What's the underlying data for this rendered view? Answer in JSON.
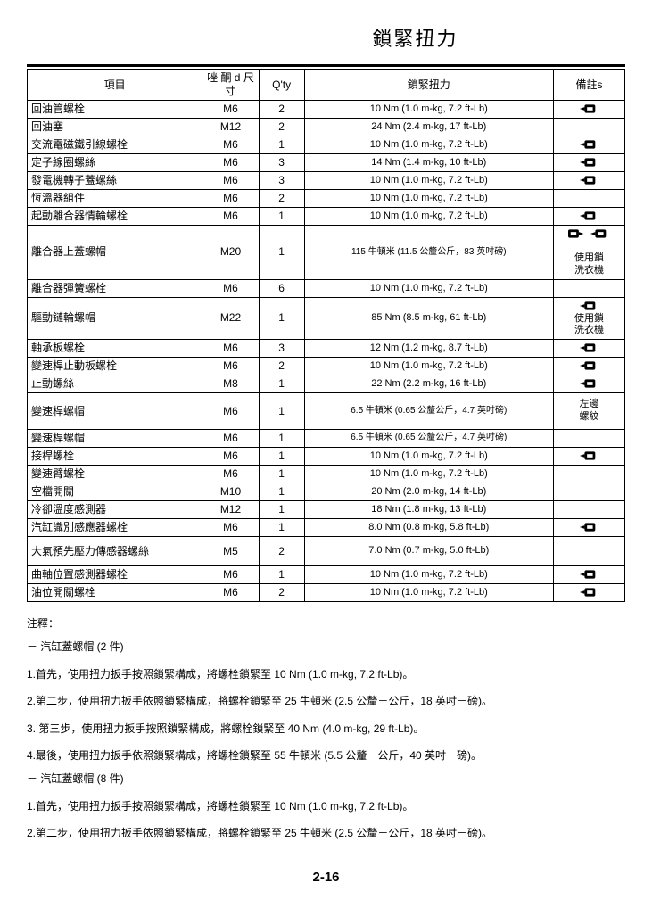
{
  "title": "鎖緊扭力",
  "headers": {
    "item": "項目",
    "size": "唑 酮\nd 尺寸",
    "qty": "Q'ty",
    "torque": "鎖緊扭力",
    "remarks": "備註s"
  },
  "remark_text": {
    "use_washer": "使用鎖\n洗衣機",
    "left_thread": "左邊\n螺紋"
  },
  "rows": [
    {
      "item": "回油管螺栓",
      "size": "M6",
      "qty": "2",
      "torque": "10 Nm (1.0 m-kg, 7.2 ft-Lb)",
      "icon": true
    },
    {
      "item": "回油塞",
      "size": "M12",
      "qty": "2",
      "torque": "24 Nm (2.4 m-kg, 17 ft-Lb)"
    },
    {
      "item": "交流電磁鐵引線螺栓",
      "size": "M6",
      "qty": "1",
      "torque": "10 Nm (1.0 m-kg, 7.2 ft-Lb)",
      "icon": true
    },
    {
      "item": "定子線圈螺絲",
      "size": "M6",
      "qty": "3",
      "torque": "14 Nm (1.4 m-kg, 10 ft-Lb)",
      "icon": true
    },
    {
      "item": "發電機轉子蓋螺絲",
      "size": "M6",
      "qty": "3",
      "torque": "10 Nm (1.0 m-kg, 7.2 ft-Lb)",
      "icon": true
    },
    {
      "item": "恆溫器組件",
      "size": "M6",
      "qty": "2",
      "torque": "10 Nm (1.0 m-kg, 7.2 ft-Lb)"
    },
    {
      "item": "起動離合器情輪螺栓",
      "size": "M6",
      "qty": "1",
      "torque": "10 Nm (1.0 m-kg, 7.2 ft-Lb)",
      "icon": true
    },
    {
      "item": "離合器上蓋螺帽",
      "size": "M20",
      "qty": "1",
      "torque": "115 牛頓米 (11.5 公釐公斤，83 英吋磅)",
      "icon": true,
      "extra_icon": true,
      "remark": "use_washer",
      "tall": true,
      "small": true
    },
    {
      "item": "離合器彈簧螺栓",
      "size": "M6",
      "qty": "6",
      "torque": "10 Nm (1.0 m-kg, 7.2 ft-Lb)"
    },
    {
      "item": "驅動鏈輪螺帽",
      "size": "M22",
      "qty": "1",
      "torque": "85 Nm (8.5 m-kg, 61 ft-Lb)",
      "icon": true,
      "remark": "use_washer",
      "tall": true
    },
    {
      "item": "軸承板螺栓",
      "size": "M6",
      "qty": "3",
      "torque": "12 Nm (1.2 m-kg, 8.7 ft-Lb)",
      "icon": true
    },
    {
      "item": "變速桿止動板螺栓",
      "size": "M6",
      "qty": "2",
      "torque": "10 Nm (1.0 m-kg, 7.2 ft-Lb)",
      "icon": true
    },
    {
      "item": "止動螺絲",
      "size": "M8",
      "qty": "1",
      "torque": "22 Nm (2.2 m-kg, 16 ft-Lb)",
      "icon": true
    },
    {
      "item": "變速桿螺帽",
      "size": "M6",
      "qty": "1",
      "torque": "6.5 牛頓米 (0.65 公釐公斤，4.7 英吋磅)",
      "remark": "left_thread",
      "tall": true,
      "small": true
    },
    {
      "item": "變速桿螺帽",
      "size": "M6",
      "qty": "1",
      "torque": "6.5 牛頓米 (0.65 公釐公斤，4.7 英吋磅)",
      "small": true
    },
    {
      "item": "接桿螺栓",
      "size": "M6",
      "qty": "1",
      "torque": "10 Nm (1.0 m-kg, 7.2 ft-Lb)",
      "icon": true
    },
    {
      "item": "變速臂螺栓",
      "size": "M6",
      "qty": "1",
      "torque": "10 Nm (1.0 m-kg, 7.2 ft-Lb)"
    },
    {
      "item": "空檔開關",
      "size": "M10",
      "qty": "1",
      "torque": "20 Nm (2.0 m-kg, 14 ft-Lb)"
    },
    {
      "item": "冷卻溫度感測器",
      "size": "M12",
      "qty": "1",
      "torque": "18 Nm (1.8 m-kg, 13 ft-Lb)"
    },
    {
      "item": "汽缸識別感應器螺栓",
      "size": "M6",
      "qty": "1",
      "torque": "8.0 Nm (0.8 m-kg, 5.8 ft-Lb)",
      "icon": true
    },
    {
      "item": "大氣預先壓力傳感器螺絲",
      "size": "M5",
      "qty": "2",
      "torque": "7.0 Nm (0.7 m-kg, 5.0 ft-Lb)",
      "tall_small": true
    },
    {
      "item": "曲軸位置感測器螺栓",
      "size": "M6",
      "qty": "1",
      "torque": "10 Nm (1.0 m-kg, 7.2 ft-Lb)",
      "icon": true
    },
    {
      "item": "油位開關螺栓",
      "size": "M6",
      "qty": "2",
      "torque": "10 Nm (1.0 m-kg, 7.2 ft-Lb)",
      "icon": true
    }
  ],
  "notes": {
    "label": "注釋：",
    "section1_title": "－ 汽缸蓋螺帽 (2 件)",
    "section1": [
      "1.首先，使用扭力扳手按照鎖緊構成，將螺栓鎖緊至 10 Nm (1.0 m-kg, 7.2 ft-Lb)。",
      "2.第二步，使用扭力扳手依照鎖緊構成，將螺栓鎖緊至 25 牛頓米 (2.5 公釐－公斤，18 英吋－磅)。",
      "3. 第三步，使用扭力扳手按照鎖緊構成，將螺栓鎖緊至 40 Nm (4.0 m-kg, 29 ft-Lb)。",
      "4.最後，使用扭力扳手依照鎖緊構成，將螺栓鎖緊至 55 牛頓米 (5.5 公釐－公斤，40 英吋－磅)。"
    ],
    "section2_title": "－ 汽缸蓋螺帽 (8 件)",
    "section2": [
      "1.首先，使用扭力扳手按照鎖緊構成，將螺栓鎖緊至 10 Nm (1.0 m-kg, 7.2 ft-Lb)。",
      "2.第二步，使用扭力扳手依照鎖緊構成，將螺栓鎖緊至 25 牛頓米 (2.5 公釐－公斤，18 英吋－磅)。"
    ]
  },
  "page_number": "2-16"
}
